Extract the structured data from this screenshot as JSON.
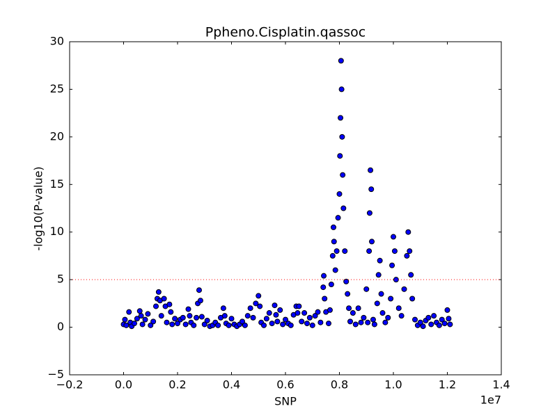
{
  "chart_data": {
    "type": "scatter",
    "title": "Ppheno.Cisplatin.qassoc",
    "xlabel": "SNP",
    "ylabel": "-log10(P-value)",
    "x_offset_label": "1e7",
    "color": "#0000ff",
    "edgecolor": "#000000",
    "x": [
      0,
      0.005,
      0.01,
      0.02,
      0.025,
      0.03,
      0.04,
      0.05,
      0.06,
      0.065,
      0.07,
      0.08,
      0.09,
      0.1,
      0.11,
      0.12,
      0.125,
      0.13,
      0.135,
      0.14,
      0.15,
      0.155,
      0.16,
      0.17,
      0.175,
      0.18,
      0.19,
      0.2,
      0.21,
      0.22,
      0.23,
      0.24,
      0.245,
      0.25,
      0.26,
      0.27,
      0.275,
      0.28,
      0.285,
      0.29,
      0.3,
      0.31,
      0.32,
      0.33,
      0.34,
      0.35,
      0.36,
      0.37,
      0.375,
      0.38,
      0.39,
      0.4,
      0.41,
      0.42,
      0.43,
      0.44,
      0.45,
      0.46,
      0.47,
      0.48,
      0.49,
      0.5,
      0.505,
      0.51,
      0.52,
      0.53,
      0.54,
      0.55,
      0.56,
      0.565,
      0.57,
      0.58,
      0.59,
      0.6,
      0.61,
      0.62,
      0.63,
      0.64,
      0.645,
      0.65,
      0.66,
      0.67,
      0.68,
      0.69,
      0.7,
      0.71,
      0.72,
      0.73,
      0.74,
      0.742,
      0.745,
      0.75,
      0.76,
      0.765,
      0.77,
      0.775,
      0.778,
      0.78,
      0.785,
      0.79,
      0.795,
      0.8,
      0.802,
      0.804,
      0.806,
      0.808,
      0.81,
      0.812,
      0.815,
      0.82,
      0.825,
      0.83,
      0.835,
      0.84,
      0.85,
      0.86,
      0.87,
      0.88,
      0.89,
      0.9,
      0.905,
      0.91,
      0.912,
      0.915,
      0.918,
      0.92,
      0.925,
      0.93,
      0.94,
      0.945,
      0.95,
      0.955,
      0.96,
      0.97,
      0.98,
      0.99,
      0.995,
      1,
      1.005,
      1.01,
      1.02,
      1.03,
      1.04,
      1.05,
      1.055,
      1.06,
      1.065,
      1.07,
      1.08,
      1.09,
      1.1,
      1.11,
      1.12,
      1.13,
      1.14,
      1.15,
      1.16,
      1.17,
      1.18,
      1.19,
      1.2,
      1.205,
      1.21
    ],
    "values": [
      0.3,
      0.8,
      0.2,
      1.6,
      0.5,
      0.1,
      0.4,
      0.9,
      1.7,
      1.2,
      0.3,
      0.8,
      1.4,
      0.2,
      0.6,
      2.2,
      3.0,
      3.7,
      2.8,
      1.2,
      3.0,
      2.2,
      0.5,
      2.4,
      1.6,
      0.3,
      0.9,
      0.4,
      0.8,
      1.0,
      0.3,
      1.9,
      1.2,
      0.5,
      0.2,
      1.0,
      2.5,
      3.9,
      2.8,
      1.1,
      0.3,
      0.7,
      0.1,
      0.2,
      0.5,
      0.2,
      1.0,
      2.0,
      1.2,
      0.4,
      0.2,
      0.9,
      0.3,
      0.1,
      0.3,
      0.6,
      0.2,
      1.2,
      2.0,
      1.0,
      2.5,
      3.3,
      2.2,
      0.5,
      0.2,
      0.9,
      1.5,
      0.4,
      2.3,
      1.3,
      0.6,
      1.8,
      0.3,
      0.8,
      0.4,
      0.2,
      1.3,
      2.2,
      1.5,
      2.2,
      0.6,
      1.5,
      0.4,
      1.0,
      0.2,
      1.2,
      1.6,
      0.5,
      4.2,
      5.4,
      3.0,
      1.6,
      0.4,
      1.8,
      4.5,
      7.5,
      10.5,
      9.0,
      6.0,
      8.0,
      11.5,
      14.0,
      18.0,
      22.0,
      28.0,
      25.0,
      20.0,
      16.0,
      12.5,
      8.0,
      4.8,
      3.5,
      2.0,
      0.6,
      1.5,
      0.3,
      2.0,
      0.5,
      1.0,
      4.0,
      0.5,
      8.0,
      12.0,
      16.5,
      14.5,
      9.0,
      0.8,
      0.3,
      2.5,
      5.5,
      7.0,
      3.5,
      1.5,
      0.5,
      1.0,
      3.0,
      6.5,
      9.5,
      8.0,
      5.0,
      2.0,
      1.2,
      4.0,
      7.5,
      10.0,
      8.0,
      5.5,
      3.0,
      0.8,
      0.2,
      0.5,
      0.1,
      0.7,
      1.0,
      0.3,
      1.2,
      0.5,
      0.2,
      0.8,
      0.4,
      1.8,
      0.9,
      0.3
    ],
    "threshold": 5,
    "threshold_color": "#ff0000",
    "xlim": [
      -0.2,
      1.4
    ],
    "xticks": [
      {
        "value": -0.2,
        "label": "−0.2"
      },
      {
        "value": 0,
        "label": "0.0"
      },
      0.2,
      0.4,
      0.6,
      0.8,
      {
        "value": 1,
        "label": "1.0"
      },
      1.2,
      1.4
    ],
    "ylim": [
      -5,
      30
    ],
    "yticks": [
      {
        "value": -5,
        "label": "−5"
      },
      0,
      5,
      10,
      15,
      20,
      25,
      30
    ]
  }
}
